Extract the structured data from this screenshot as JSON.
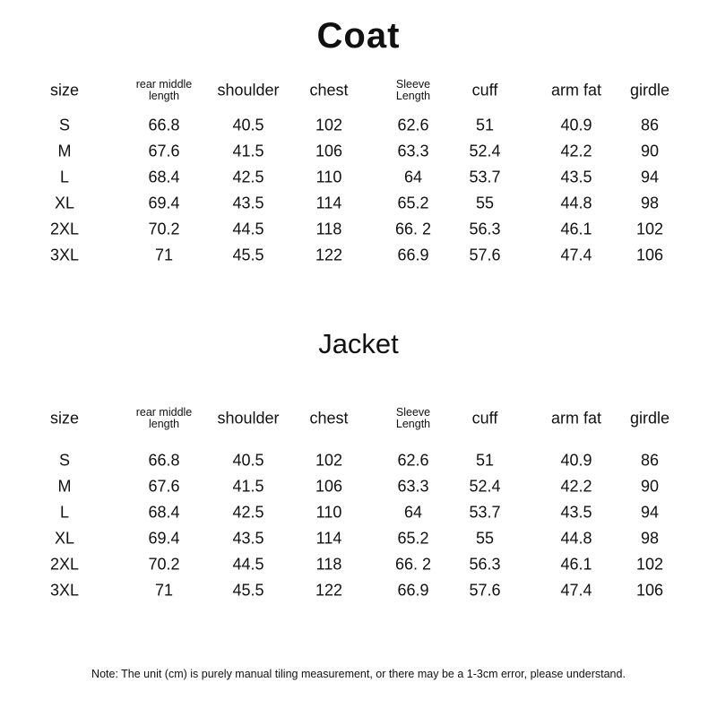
{
  "coat": {
    "title": "Coat",
    "headers": [
      "size",
      "rear middle\nlength",
      "shoulder",
      "chest",
      "Sleeve\nLength",
      "cuff",
      "arm fat",
      "girdle"
    ],
    "rows": [
      [
        "S",
        "66.8",
        "40.5",
        "102",
        "62.6",
        "51",
        "40.9",
        "86"
      ],
      [
        "M",
        "67.6",
        "41.5",
        "106",
        "63.3",
        "52.4",
        "42.2",
        "90"
      ],
      [
        "L",
        "68.4",
        "42.5",
        "110",
        "64",
        "53.7",
        "43.5",
        "94"
      ],
      [
        "XL",
        "69.4",
        "43.5",
        "114",
        "65.2",
        "55",
        "44.8",
        "98"
      ],
      [
        "2XL",
        "70.2",
        "44.5",
        "118",
        "66. 2",
        "56.3",
        "46.1",
        "102"
      ],
      [
        "3XL",
        "71",
        "45.5",
        "122",
        "66.9",
        "57.6",
        "47.4",
        "106"
      ]
    ]
  },
  "jacket": {
    "title": "Jacket",
    "headers": [
      "size",
      "rear middle\nlength",
      "shoulder",
      "chest",
      "Sleeve\nLength",
      "cuff",
      "arm fat",
      "girdle"
    ],
    "rows": [
      [
        "S",
        "66.8",
        "40.5",
        "102",
        "62.6",
        "51",
        "40.9",
        "86"
      ],
      [
        "M",
        "67.6",
        "41.5",
        "106",
        "63.3",
        "52.4",
        "42.2",
        "90"
      ],
      [
        "L",
        "68.4",
        "42.5",
        "110",
        "64",
        "53.7",
        "43.5",
        "94"
      ],
      [
        "XL",
        "69.4",
        "43.5",
        "114",
        "65.2",
        "55",
        "44.8",
        "98"
      ],
      [
        "2XL",
        "70.2",
        "44.5",
        "118",
        "66. 2",
        "56.3",
        "46.1",
        "102"
      ],
      [
        "3XL",
        "71",
        "45.5",
        "122",
        "66.9",
        "57.6",
        "47.4",
        "106"
      ]
    ]
  },
  "note": "Note: The unit (cm) is purely manual tiling measurement, or there may be a 1-3cm error, please understand."
}
